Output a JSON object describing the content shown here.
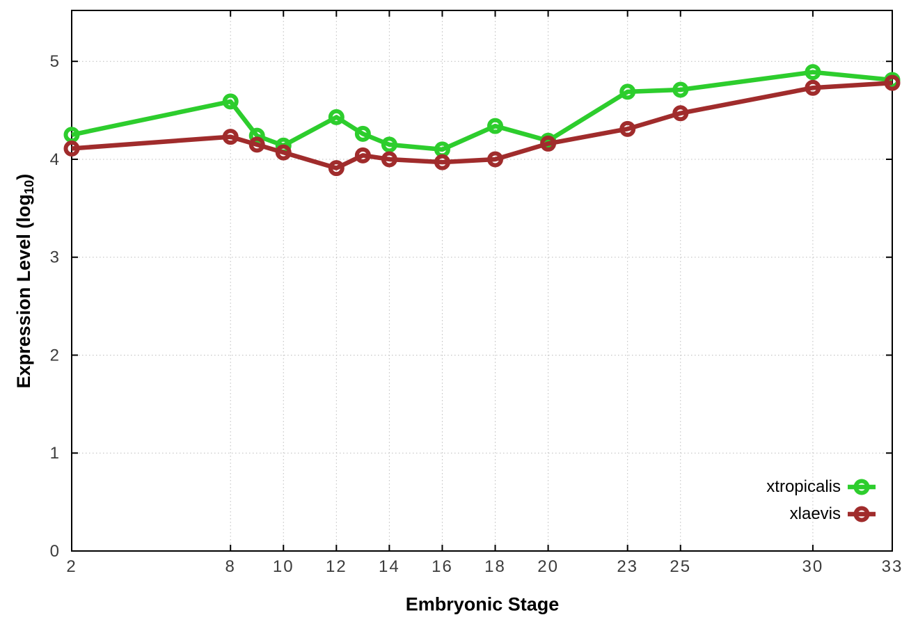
{
  "chart_data": {
    "type": "line",
    "title": "",
    "x": [
      2,
      8,
      9,
      10,
      12,
      13,
      14,
      16,
      18,
      20,
      23,
      25,
      30,
      33
    ],
    "series": [
      {
        "name": "xtropicalis",
        "color": "#2dcd2d",
        "values": [
          4.25,
          4.59,
          4.24,
          4.14,
          4.43,
          4.26,
          4.15,
          4.1,
          4.34,
          4.19,
          4.69,
          4.71,
          4.89,
          4.81
        ]
      },
      {
        "name": "xlaevis",
        "color": "#a02c2c",
        "values": [
          4.11,
          4.23,
          4.15,
          4.07,
          3.91,
          4.04,
          4.0,
          3.97,
          4.0,
          4.16,
          4.31,
          4.47,
          4.73,
          4.78
        ]
      }
    ],
    "xlabel": "Embryonic Stage",
    "ylabel": "Expression Level (log10)",
    "ylabel_parts": {
      "prefix": "Expression Level (log",
      "subscript": "10",
      "suffix": ")"
    },
    "xticks": [
      2,
      8,
      10,
      12,
      14,
      16,
      18,
      20,
      23,
      25,
      30,
      33
    ],
    "yticks": [
      0,
      1,
      2,
      3,
      4,
      5
    ],
    "xlim": [
      2,
      33
    ],
    "ylim": [
      0,
      5.52
    ],
    "grid": "dotted",
    "legend_position": "bottom-right-inside",
    "marker_style": "open-circle",
    "axis_color": "#000000",
    "grid_color": "#bcbcbc",
    "tick_label_color": "#3c3c3c",
    "background": "#ffffff"
  }
}
